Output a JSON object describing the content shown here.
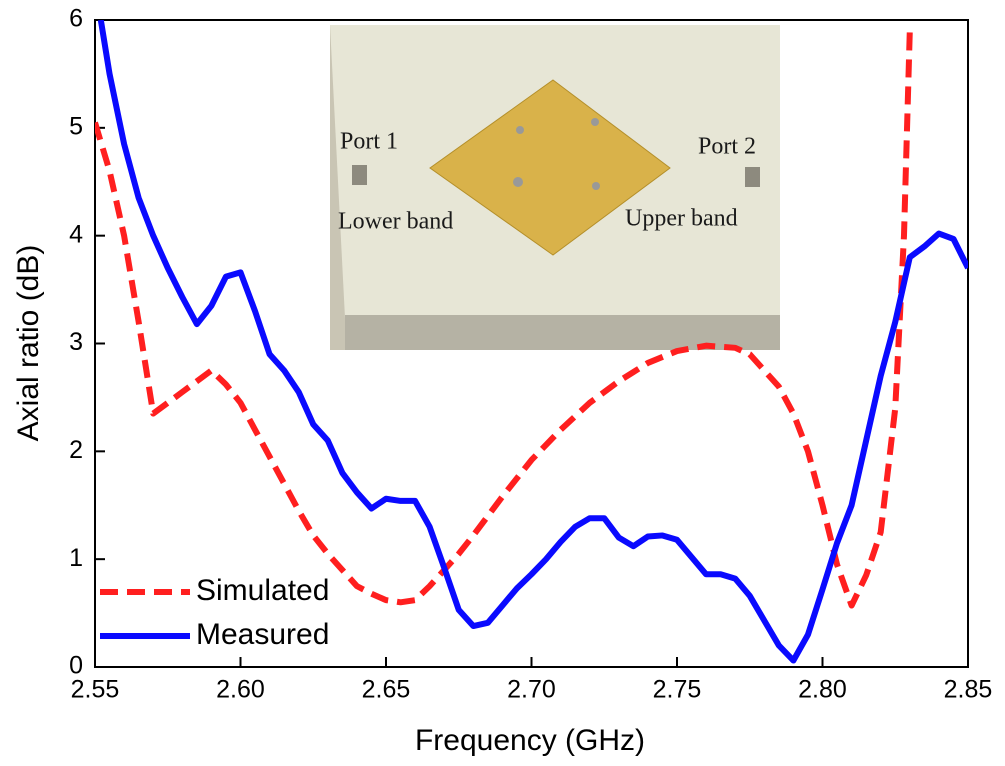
{
  "chart_data": {
    "type": "line",
    "xlabel": "Frequency (GHz)",
    "ylabel": "Axial ratio (dB)",
    "xlim": [
      2.55,
      2.85
    ],
    "ylim": [
      0,
      6
    ],
    "xticks": [
      2.55,
      {
        "value": 2.6,
        "label": "2.60"
      },
      2.65,
      {
        "value": 2.7,
        "label": "2.70"
      },
      2.75,
      {
        "value": 2.8,
        "label": "2.80"
      },
      2.85
    ],
    "yticks": [
      0,
      1,
      2,
      3,
      4,
      5,
      6
    ],
    "legend": "lower left",
    "annotations": [
      "Port 1",
      "Port 2",
      "Lower band",
      "Upper band"
    ],
    "series": [
      {
        "name": "Simulated",
        "color": "#ff1f1f",
        "dash": true,
        "x": [
          2.55,
          2.555,
          2.56,
          2.565,
          2.57,
          2.575,
          2.58,
          2.585,
          2.59,
          2.595,
          2.6,
          2.605,
          2.61,
          2.615,
          2.62,
          2.625,
          2.63,
          2.635,
          2.64,
          2.645,
          2.65,
          2.655,
          2.66,
          2.665,
          2.67,
          2.675,
          2.68,
          2.685,
          2.69,
          2.695,
          2.7,
          2.71,
          2.72,
          2.73,
          2.74,
          2.75,
          2.76,
          2.77,
          2.775,
          2.78,
          2.785,
          2.79,
          2.795,
          2.8,
          2.805,
          2.81,
          2.815,
          2.82,
          2.825,
          2.828,
          2.83
        ],
        "values": [
          5.05,
          4.6,
          4.0,
          3.2,
          2.35,
          2.45,
          2.55,
          2.65,
          2.75,
          2.62,
          2.45,
          2.2,
          1.95,
          1.7,
          1.45,
          1.22,
          1.05,
          0.9,
          0.75,
          0.68,
          0.62,
          0.6,
          0.62,
          0.75,
          0.9,
          1.05,
          1.22,
          1.4,
          1.58,
          1.75,
          1.92,
          2.2,
          2.45,
          2.65,
          2.82,
          2.93,
          2.98,
          2.96,
          2.9,
          2.75,
          2.6,
          2.35,
          2.0,
          1.5,
          0.95,
          0.57,
          0.85,
          1.25,
          2.4,
          4.0,
          5.9
        ]
      },
      {
        "name": "Measured",
        "color": "#0a0aff",
        "dash": false,
        "x": [
          2.552,
          2.555,
          2.56,
          2.565,
          2.57,
          2.575,
          2.58,
          2.585,
          2.59,
          2.595,
          2.6,
          2.605,
          2.61,
          2.615,
          2.62,
          2.625,
          2.63,
          2.635,
          2.64,
          2.645,
          2.65,
          2.655,
          2.66,
          2.665,
          2.67,
          2.675,
          2.68,
          2.685,
          2.69,
          2.695,
          2.7,
          2.705,
          2.71,
          2.715,
          2.72,
          2.725,
          2.73,
          2.735,
          2.74,
          2.745,
          2.75,
          2.755,
          2.76,
          2.765,
          2.77,
          2.775,
          2.78,
          2.785,
          2.79,
          2.795,
          2.8,
          2.805,
          2.81,
          2.815,
          2.82,
          2.825,
          2.83,
          2.835,
          2.84,
          2.845,
          2.85
        ],
        "values": [
          6.0,
          5.5,
          4.85,
          4.35,
          4.0,
          3.7,
          3.43,
          3.18,
          3.35,
          3.62,
          3.66,
          3.3,
          2.9,
          2.75,
          2.55,
          2.25,
          2.1,
          1.8,
          1.62,
          1.47,
          1.56,
          1.54,
          1.54,
          1.3,
          0.92,
          0.53,
          0.38,
          0.41,
          0.57,
          0.73,
          0.86,
          1.0,
          1.16,
          1.3,
          1.38,
          1.38,
          1.2,
          1.12,
          1.21,
          1.22,
          1.18,
          1.02,
          0.86,
          0.86,
          0.82,
          0.66,
          0.43,
          0.2,
          0.06,
          0.3,
          0.72,
          1.15,
          1.5,
          2.1,
          2.7,
          3.2,
          3.8,
          3.9,
          4.02,
          3.97,
          3.7
        ]
      }
    ]
  }
}
